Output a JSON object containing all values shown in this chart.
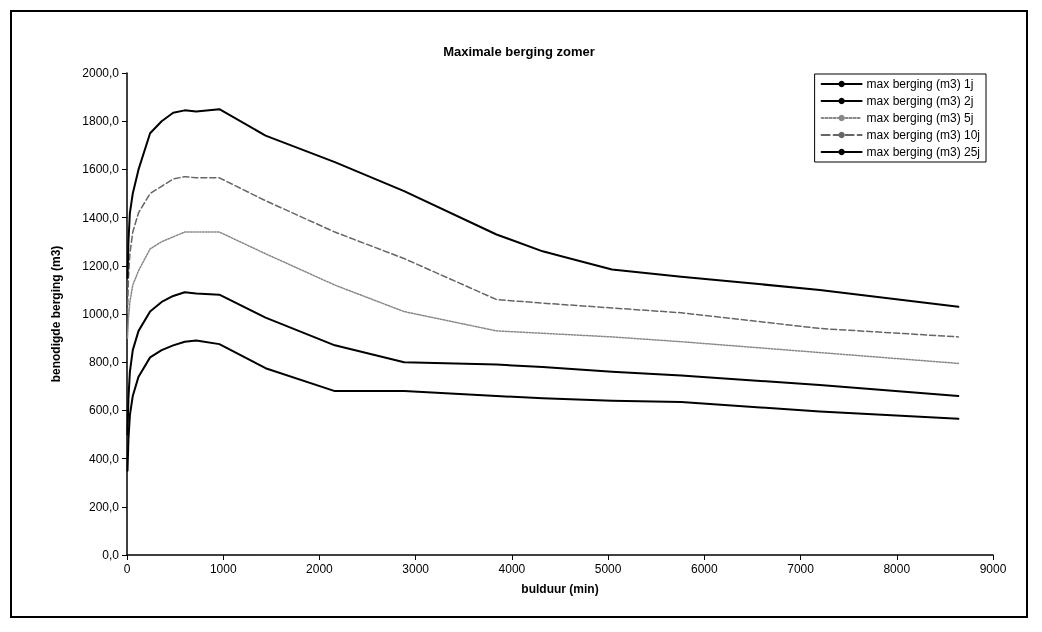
{
  "chart_data": {
    "type": "line",
    "title": "Maximale berging zomer",
    "xlabel": "bulduur (min)",
    "ylabel": "benodigde berging (m3)",
    "x": [
      5,
      15,
      30,
      60,
      120,
      240,
      360,
      480,
      600,
      720,
      960,
      1440,
      2160,
      2880,
      3840,
      4320,
      5040,
      5760,
      7200,
      8640
    ],
    "series": [
      {
        "name": "max berging (m3) 1j",
        "color": "#000000",
        "line_style": "solid",
        "values": [
          350,
          480,
          580,
          660,
          740,
          820,
          850,
          870,
          885,
          890,
          875,
          775,
          680,
          680,
          660,
          650,
          640,
          635,
          595,
          565
        ]
      },
      {
        "name": "max berging (m3) 2j",
        "color": "#000000",
        "line_style": "solid",
        "values": [
          500,
          650,
          760,
          850,
          930,
          1010,
          1050,
          1075,
          1090,
          1085,
          1080,
          985,
          870,
          800,
          790,
          780,
          760,
          745,
          705,
          660
        ]
      },
      {
        "name": "max berging (m3) 5j",
        "color": "#888888",
        "line_style": "dotted",
        "values": [
          900,
          980,
          1050,
          1120,
          1180,
          1270,
          1300,
          1320,
          1340,
          1340,
          1340,
          1250,
          1120,
          1010,
          930,
          920,
          905,
          885,
          840,
          795
        ]
      },
      {
        "name": "max berging (m3) 10j",
        "color": "#666666",
        "line_style": "dashed",
        "values": [
          1000,
          1150,
          1250,
          1340,
          1420,
          1500,
          1530,
          1560,
          1570,
          1565,
          1565,
          1470,
          1340,
          1230,
          1060,
          1045,
          1025,
          1005,
          940,
          905
        ]
      },
      {
        "name": "max berging (m3) 25j",
        "color": "#000000",
        "line_style": "solid",
        "values": [
          1150,
          1300,
          1420,
          1500,
          1600,
          1750,
          1800,
          1835,
          1845,
          1840,
          1850,
          1740,
          1630,
          1510,
          1330,
          1260,
          1185,
          1155,
          1100,
          1030
        ]
      }
    ],
    "xlim": [
      0,
      9000
    ],
    "xticks": [
      0,
      1000,
      2000,
      3000,
      4000,
      5000,
      6000,
      7000,
      8000,
      9000
    ],
    "ylim": [
      0,
      2000
    ],
    "yticks": [
      {
        "value": 0,
        "label": "0,0"
      },
      {
        "value": 200,
        "label": "200,0"
      },
      {
        "value": 400,
        "label": "400,0"
      },
      {
        "value": 600,
        "label": "600,0"
      },
      {
        "value": 800,
        "label": "800,0"
      },
      {
        "value": 1000,
        "label": "1000,0"
      },
      {
        "value": 1200,
        "label": "1200,0"
      },
      {
        "value": 1400,
        "label": "1400,0"
      },
      {
        "value": 1600,
        "label": "1600,0"
      },
      {
        "value": 1800,
        "label": "1800,0"
      },
      {
        "value": 2000,
        "label": "2000,0"
      }
    ],
    "grid": false,
    "legend": "top right",
    "marker": "none"
  }
}
